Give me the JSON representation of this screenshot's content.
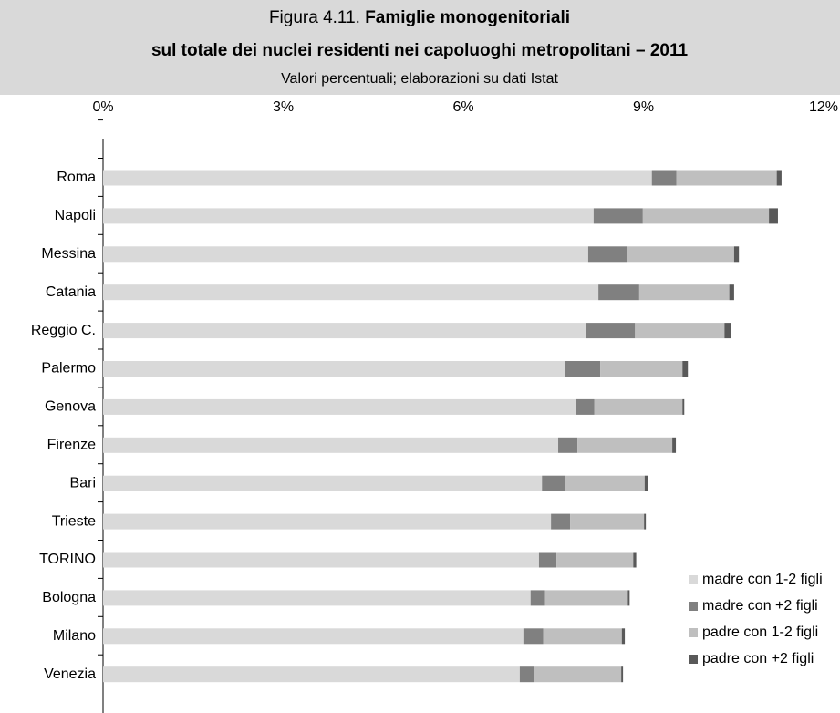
{
  "chart_data": {
    "type": "stacked-bar-horizontal",
    "figure_label": "Figura 4.11.",
    "title": [
      "Famiglie monogenitoriali",
      "sul totale dei nuclei residenti nei capoluoghi metropolitani – 2011"
    ],
    "subtitle": "Valori percentuali; elaborazioni su dati Istat",
    "categories": [
      "Roma",
      "Napoli",
      "Messina",
      "Catania",
      "Reggio C.",
      "Palermo",
      "Genova",
      "Firenze",
      "Bari",
      "Trieste",
      "TORINO",
      "Bologna",
      "Milano",
      "Venezia"
    ],
    "series": [
      {
        "name": "madre con 1-2 figli",
        "color": "#d9d9d9",
        "values": [
          9.14,
          8.17,
          8.08,
          8.25,
          8.05,
          7.7,
          7.88,
          7.58,
          7.31,
          7.46,
          7.26,
          7.12,
          7.0,
          6.94
        ]
      },
      {
        "name": "madre con +2 figli",
        "color": "#808080",
        "values": [
          0.41,
          0.82,
          0.64,
          0.68,
          0.81,
          0.58,
          0.3,
          0.32,
          0.39,
          0.32,
          0.29,
          0.24,
          0.33,
          0.23
        ]
      },
      {
        "name": "padre con 1-2 figli",
        "color": "#bfbfbf",
        "values": [
          1.67,
          2.1,
          1.79,
          1.5,
          1.49,
          1.37,
          1.47,
          1.58,
          1.32,
          1.23,
          1.28,
          1.38,
          1.31,
          1.46
        ]
      },
      {
        "name": "padre con +2 figli",
        "color": "#595959",
        "values": [
          0.08,
          0.15,
          0.08,
          0.08,
          0.11,
          0.09,
          0.03,
          0.06,
          0.05,
          0.03,
          0.05,
          0.03,
          0.05,
          0.03
        ]
      }
    ],
    "xlim": [
      0,
      12
    ],
    "xticks": [
      {
        "value": 0,
        "label": "0%"
      },
      {
        "value": 3,
        "label": "3%"
      },
      {
        "value": 6,
        "label": "6%"
      },
      {
        "value": 9,
        "label": "9%"
      },
      {
        "value": 12,
        "label": "12%"
      }
    ],
    "legend": "bottom-right"
  }
}
